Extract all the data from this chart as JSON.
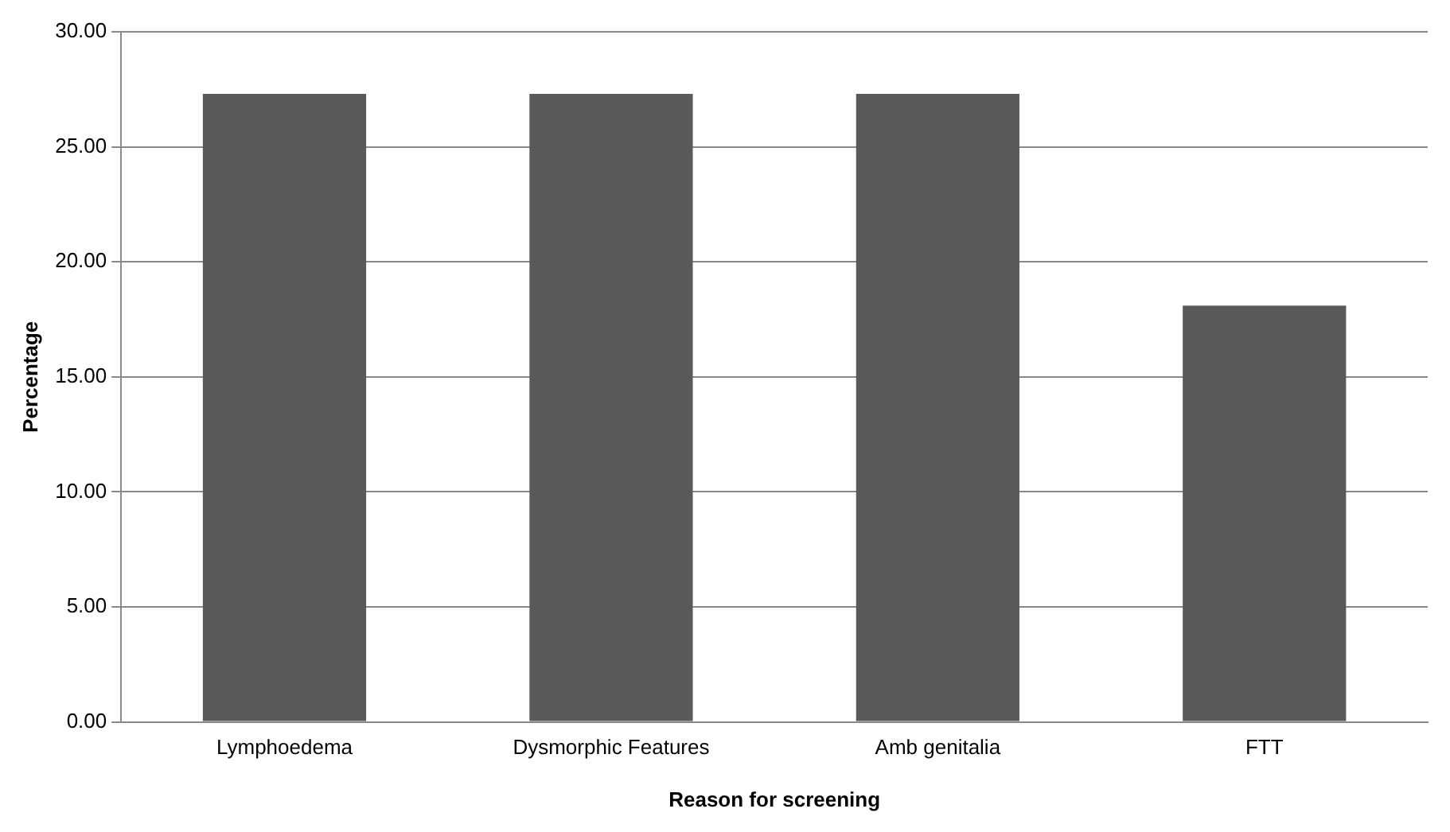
{
  "chart_data": {
    "type": "bar",
    "xlabel": "Reason for screening",
    "ylabel": "Percentage",
    "categories": [
      "Lymphoedema",
      "Dysmorphic Features",
      "Amb genitalia",
      "FTT"
    ],
    "values": [
      27.3,
      27.3,
      27.3,
      18.1
    ],
    "color": "#595959",
    "ylim": [
      0,
      30
    ],
    "yticks": [
      {
        "value": 0,
        "label": "0.00"
      },
      {
        "value": 5,
        "label": "5.00"
      },
      {
        "value": 10,
        "label": "10.00"
      },
      {
        "value": 15,
        "label": "15.00"
      },
      {
        "value": 20,
        "label": "20.00"
      },
      {
        "value": 25,
        "label": "25.00"
      },
      {
        "value": 30,
        "label": "30.00"
      }
    ],
    "grid": "y",
    "legend": false
  }
}
